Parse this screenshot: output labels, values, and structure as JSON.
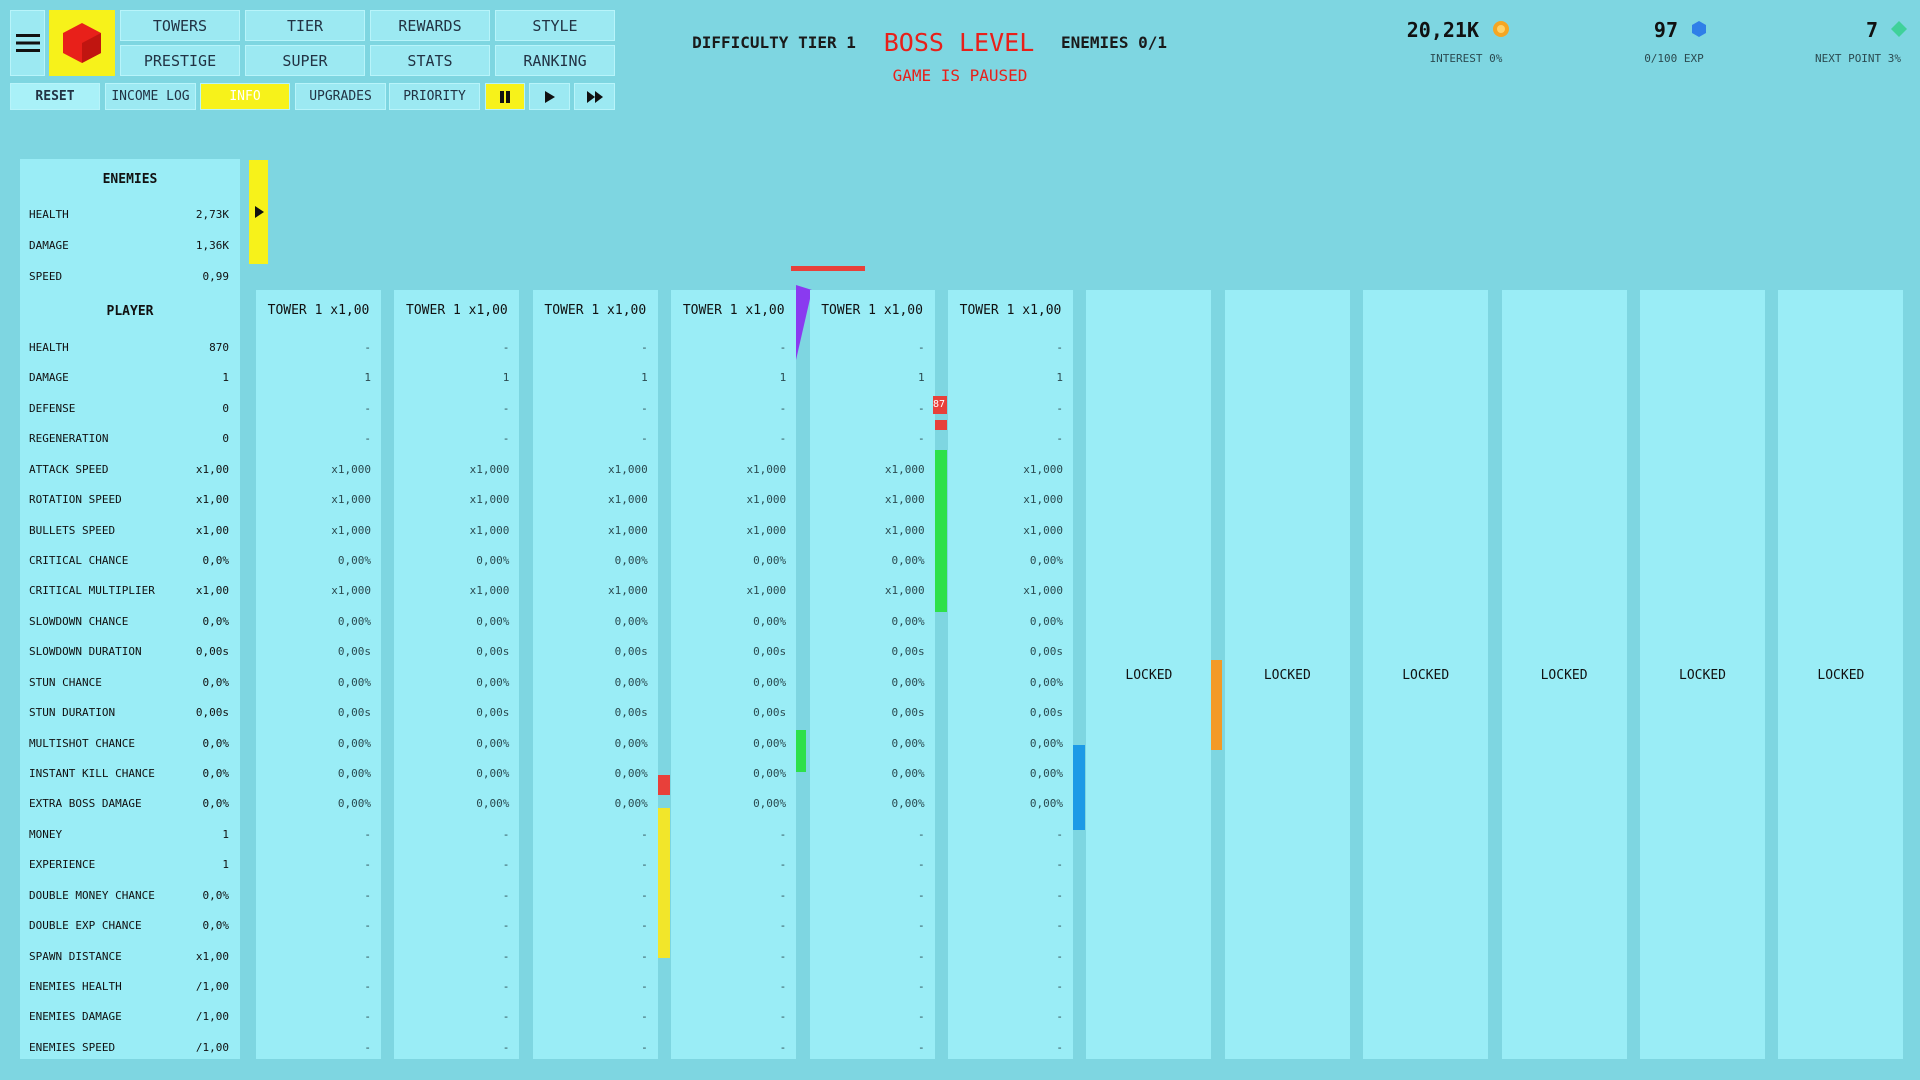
{
  "menu": {
    "buttons": [
      "TOWERS",
      "TIER",
      "REWARDS",
      "STYLE",
      "PRESTIGE",
      "SUPER",
      "STATS",
      "RANKING"
    ],
    "toolbar": [
      "RESET",
      "INCOME LOG",
      "INFO",
      "UPGRADES",
      "PRIORITY"
    ]
  },
  "header": {
    "difficulty": "DIFFICULTY TIER 1",
    "title": "BOSS LEVEL",
    "enemies": "ENEMIES 0/1",
    "status": "GAME IS PAUSED"
  },
  "stats": [
    {
      "value": "20,21K",
      "label": "INTEREST 0%"
    },
    {
      "value": "97",
      "label": "0/100 EXP"
    },
    {
      "value": "7",
      "label": "NEXT POINT 3%"
    }
  ],
  "enemies": {
    "title": "ENEMIES",
    "rows": [
      [
        "HEALTH",
        "2,73K"
      ],
      [
        "DAMAGE",
        "1,36K"
      ],
      [
        "SPEED",
        "0,99"
      ]
    ]
  },
  "player": {
    "title": "PLAYER",
    "rows": [
      [
        "HEALTH",
        "870"
      ],
      [
        "DAMAGE",
        "1"
      ],
      [
        "DEFENSE",
        "0"
      ],
      [
        "REGENERATION",
        "0"
      ],
      [
        "ATTACK SPEED",
        "x1,00"
      ],
      [
        "ROTATION SPEED",
        "x1,00"
      ],
      [
        "BULLETS SPEED",
        "x1,00"
      ],
      [
        "CRITICAL CHANCE",
        "0,0%"
      ],
      [
        "CRITICAL MULTIPLIER",
        "x1,00"
      ],
      [
        "SLOWDOWN CHANCE",
        "0,0%"
      ],
      [
        "SLOWDOWN DURATION",
        "0,00s"
      ],
      [
        "STUN CHANCE",
        "0,0%"
      ],
      [
        "STUN DURATION",
        "0,00s"
      ],
      [
        "MULTISHOT CHANCE",
        "0,0%"
      ],
      [
        "INSTANT KILL CHANCE",
        "0,0%"
      ],
      [
        "EXTRA BOSS DAMAGE",
        "0,0%"
      ],
      [
        "MONEY",
        "1"
      ],
      [
        "EXPERIENCE",
        "1"
      ],
      [
        "DOUBLE MONEY CHANCE",
        "0,0%"
      ],
      [
        "DOUBLE EXP CHANCE",
        "0,0%"
      ],
      [
        "SPAWN DISTANCE",
        "x1,00"
      ],
      [
        "ENEMIES HEALTH",
        "/1,00"
      ],
      [
        "ENEMIES DAMAGE",
        "/1,00"
      ],
      [
        "ENEMIES SPEED",
        "/1,00"
      ]
    ]
  },
  "towers": [
    {
      "title": "TOWER 1 x1,00",
      "values": [
        "-",
        "1",
        "-",
        "-",
        "x1,000",
        "x1,000",
        "x1,000",
        "0,00%",
        "x1,000",
        "0,00%",
        "0,00s",
        "0,00%",
        "0,00s",
        "0,00%",
        "0,00%",
        "0,00%",
        "-",
        "-",
        "-",
        "-",
        "-",
        "-",
        "-",
        "-"
      ]
    },
    {
      "title": "TOWER 1 x1,00",
      "values": [
        "-",
        "1",
        "-",
        "-",
        "x1,000",
        "x1,000",
        "x1,000",
        "0,00%",
        "x1,000",
        "0,00%",
        "0,00s",
        "0,00%",
        "0,00s",
        "0,00%",
        "0,00%",
        "0,00%",
        "-",
        "-",
        "-",
        "-",
        "-",
        "-",
        "-",
        "-"
      ]
    },
    {
      "title": "TOWER 1 x1,00",
      "values": [
        "-",
        "1",
        "-",
        "-",
        "x1,000",
        "x1,000",
        "x1,000",
        "0,00%",
        "x1,000",
        "0,00%",
        "0,00s",
        "0,00%",
        "0,00s",
        "0,00%",
        "0,00%",
        "0,00%",
        "-",
        "-",
        "-",
        "-",
        "-",
        "-",
        "-",
        "-"
      ]
    },
    {
      "title": "TOWER 1 x1,00",
      "values": [
        "-",
        "1",
        "-",
        "-",
        "x1,000",
        "x1,000",
        "x1,000",
        "0,00%",
        "x1,000",
        "0,00%",
        "0,00s",
        "0,00%",
        "0,00s",
        "0,00%",
        "0,00%",
        "0,00%",
        "-",
        "-",
        "-",
        "-",
        "-",
        "-",
        "-",
        "-"
      ]
    },
    {
      "title": "TOWER 1 x1,00",
      "values": [
        "-",
        "1",
        "-",
        "-",
        "x1,000",
        "x1,000",
        "x1,000",
        "0,00%",
        "x1,000",
        "0,00%",
        "0,00s",
        "0,00%",
        "0,00s",
        "0,00%",
        "0,00%",
        "0,00%",
        "-",
        "-",
        "-",
        "-",
        "-",
        "-",
        "-",
        "-"
      ]
    },
    {
      "title": "TOWER 1 x1,00",
      "values": [
        "-",
        "1",
        "-",
        "-",
        "x1,000",
        "x1,000",
        "x1,000",
        "0,00%",
        "x1,000",
        "0,00%",
        "0,00s",
        "0,00%",
        "0,00s",
        "0,00%",
        "0,00%",
        "0,00%",
        "-",
        "-",
        "-",
        "-",
        "-",
        "-",
        "-",
        "-"
      ]
    },
    {
      "status": "LOCKED"
    },
    {
      "status": "LOCKED"
    },
    {
      "status": "LOCKED"
    },
    {
      "status": "LOCKED"
    },
    {
      "status": "LOCKED"
    },
    {
      "status": "LOCKED"
    }
  ],
  "game": {
    "marker": "87"
  }
}
